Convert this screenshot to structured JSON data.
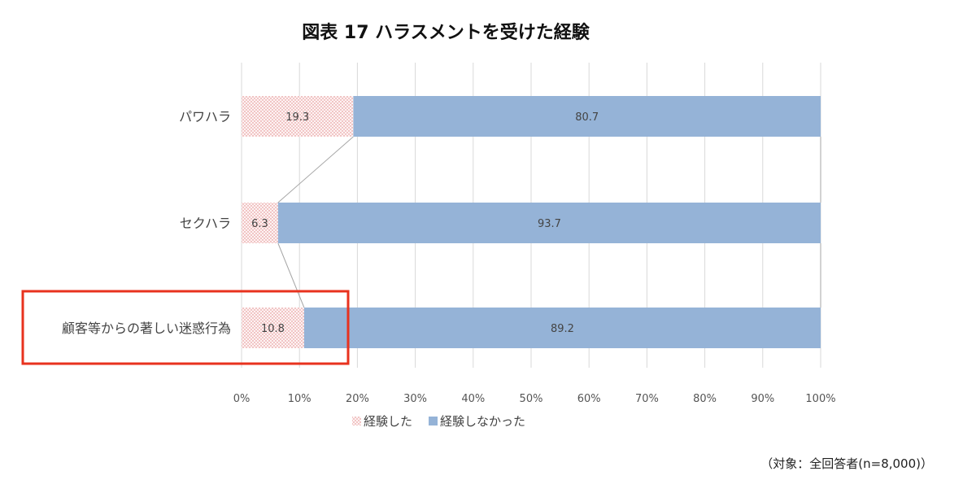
{
  "chart_data": {
    "type": "bar",
    "orientation": "horizontal",
    "stacked": "percent",
    "title": "図表 17 ハラスメントを受けた経験",
    "categories": [
      "パワハラ",
      "セクハラ",
      "顧客等からの著しい迷惑行為"
    ],
    "series": [
      {
        "name": "経験した",
        "values": [
          19.3,
          6.3,
          10.8
        ],
        "color": "#f2b8b8",
        "pattern": "dots"
      },
      {
        "name": "経験しなかった",
        "values": [
          80.7,
          93.7,
          89.2
        ],
        "color": "#95b3d7",
        "pattern": "solid"
      }
    ],
    "xlim": [
      0,
      100
    ],
    "x_ticks": [
      "0%",
      "10%",
      "20%",
      "30%",
      "40%",
      "50%",
      "60%",
      "70%",
      "80%",
      "90%",
      "100%"
    ],
    "grid": true,
    "series_lines": true,
    "legend": "bottom",
    "highlight": {
      "category": "顧客等からの著しい迷惑行為",
      "color": "#e8321e"
    },
    "note": "（対象：全回答者(n=8,000)）"
  }
}
